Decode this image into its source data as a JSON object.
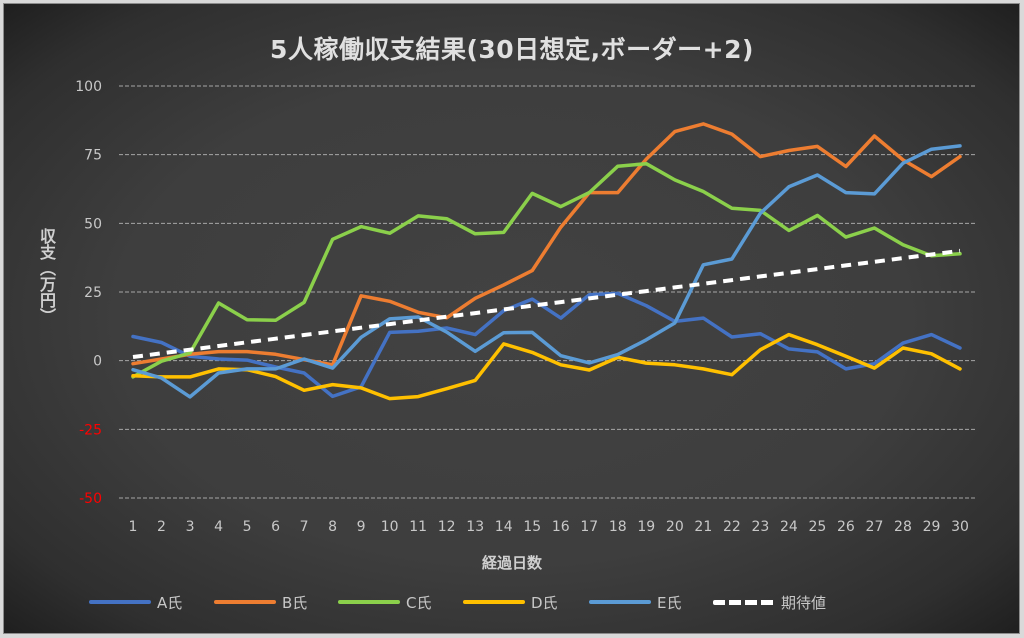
{
  "chart_data": {
    "type": "line",
    "title": "5人稼働収支結果(30日想定,ボーダー+2)",
    "xlabel": "経過日数",
    "ylabel": "収支（万円）",
    "x": [
      1,
      2,
      3,
      4,
      5,
      6,
      7,
      8,
      9,
      10,
      11,
      12,
      13,
      14,
      15,
      16,
      17,
      18,
      19,
      20,
      21,
      22,
      23,
      24,
      25,
      26,
      27,
      28,
      29,
      30
    ],
    "ylim": [
      -50,
      100
    ],
    "yticks": [
      100,
      75,
      50,
      25,
      0,
      -25,
      -50
    ],
    "ytick_labels": [
      "100",
      "75",
      "50",
      "25",
      "0",
      "-25",
      "-50"
    ],
    "negative_tick_color": "#ff0000",
    "grid": true,
    "legend_position": "bottom",
    "series": [
      {
        "name": "A氏",
        "color": "#4472c4",
        "dashed": false,
        "values": [
          8.8,
          6.6,
          1.6,
          0.6,
          0.2,
          -2.3,
          -4.5,
          -13,
          -9.5,
          10.3,
          10.7,
          11.9,
          9.5,
          18.2,
          22.4,
          15.5,
          24,
          24.5,
          20,
          14.3,
          15.5,
          8.6,
          9.8,
          4.3,
          3.2,
          -3,
          -1.1,
          6.4,
          9.5,
          4.6
        ]
      },
      {
        "name": "B氏",
        "color": "#ed7d31",
        "dashed": false,
        "values": [
          -1.1,
          0.6,
          2.3,
          3.3,
          3.3,
          2.3,
          0.4,
          -1.5,
          23.6,
          21.6,
          17.6,
          15.6,
          22.7,
          27.6,
          32.8,
          48.6,
          61.2,
          61.2,
          73.4,
          83.4,
          86.2,
          82.5,
          74.3,
          76.5,
          78,
          70.7,
          81.8,
          73.1,
          67,
          74.3
        ]
      },
      {
        "name": "C氏",
        "color": "#8bd04b",
        "dashed": false,
        "values": [
          -5.9,
          -0.2,
          2.8,
          21,
          14.9,
          14.7,
          21.2,
          44.2,
          48.8,
          46.4,
          52.7,
          51.7,
          46.2,
          46.7,
          60.9,
          56.1,
          61.2,
          70.8,
          71.7,
          65.8,
          61.6,
          55.5,
          54.7,
          47.4,
          52.9,
          45,
          48.3,
          42.2,
          38.2,
          38.9
        ]
      },
      {
        "name": "D氏",
        "color": "#ffc000",
        "dashed": false,
        "values": [
          -5.5,
          -5.9,
          -5.9,
          -3,
          -3.3,
          -5.8,
          -10.8,
          -8.7,
          -9.9,
          -13.8,
          -13.1,
          -10.2,
          -7.2,
          6.1,
          3,
          -1.5,
          -3.4,
          1.2,
          -0.9,
          -1.5,
          -3,
          -5.1,
          4,
          9.5,
          5.8,
          1.6,
          -2.7,
          4.6,
          2.5,
          -3
        ]
      },
      {
        "name": "E氏",
        "color": "#5b9bd5",
        "dashed": false,
        "values": [
          -3.3,
          -6.3,
          -13.2,
          -4.5,
          -3,
          -3,
          0.6,
          -2.7,
          8.5,
          15.2,
          15.9,
          10.4,
          3.4,
          10.2,
          10.3,
          1.8,
          -0.8,
          2.2,
          7.6,
          13.7,
          34.9,
          37,
          53.7,
          63.3,
          67.6,
          61.2,
          60.7,
          71.9,
          77,
          78.2
        ]
      },
      {
        "name": "期待値",
        "color": "#ffffff",
        "dashed": true,
        "values": [
          1.33,
          2.67,
          4,
          5.33,
          6.67,
          8,
          9.33,
          10.67,
          12,
          13.33,
          14.67,
          16,
          17.33,
          18.67,
          20,
          21.33,
          22.67,
          24,
          25.33,
          26.67,
          28,
          29.33,
          30.67,
          32,
          33.33,
          34.67,
          36,
          37.33,
          38.67,
          40
        ]
      }
    ]
  }
}
